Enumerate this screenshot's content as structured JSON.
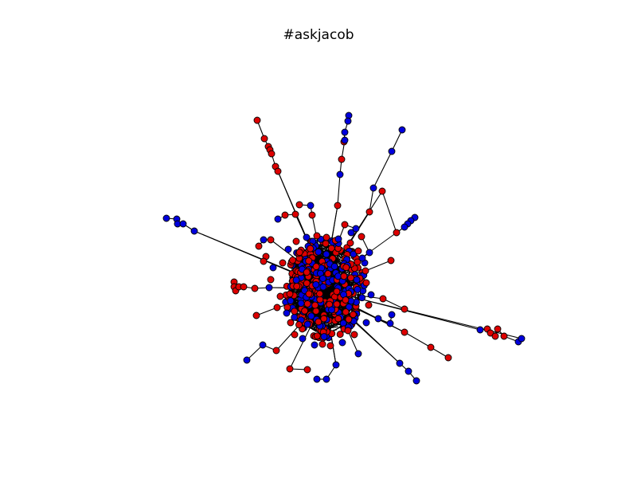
{
  "title": "#askjacob",
  "colors": {
    "background": "#ffffff",
    "edge": "#000000",
    "node_red": "#dd0000",
    "node_blue": "#0000dd",
    "node_outline": "#000000"
  }
}
